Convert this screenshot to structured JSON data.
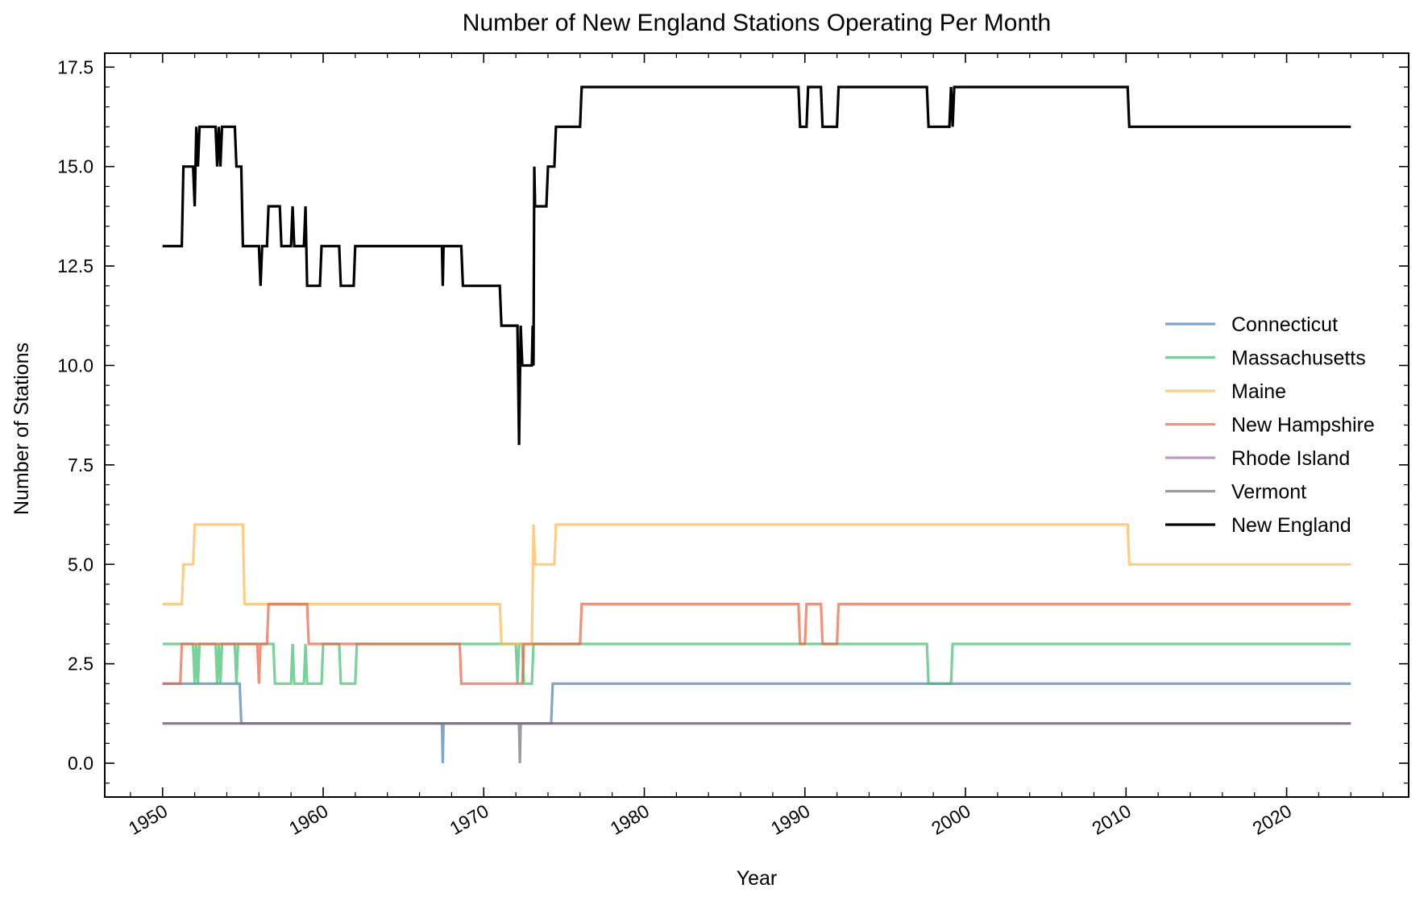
{
  "chart_data": {
    "type": "line",
    "title": "Number of New England Stations Operating Per Month",
    "xlabel": "Year",
    "ylabel": "Number of Stations",
    "xlim": [
      1946.4,
      2027.6
    ],
    "ylim": [
      -0.85,
      17.85
    ],
    "xticks": [
      "1950",
      "1960",
      "1970",
      "1980",
      "1990",
      "2000",
      "2010",
      "2020"
    ],
    "yticks": [
      "0.0",
      "2.5",
      "5.0",
      "7.5",
      "10.0",
      "12.5",
      "15.0",
      "17.5"
    ],
    "grid": false,
    "legend_position": "center-right",
    "series": [
      {
        "name": "Connecticut",
        "color": "#4a7fb5",
        "points": [
          [
            1950.0,
            2
          ],
          [
            1954.8,
            2
          ],
          [
            1954.9,
            1
          ],
          [
            1967.4,
            1
          ],
          [
            1967.45,
            0
          ],
          [
            1967.5,
            1
          ],
          [
            1974.2,
            1
          ],
          [
            1974.3,
            2
          ],
          [
            2024.0,
            2
          ]
        ]
      },
      {
        "name": "Massachusetts",
        "color": "#3cbf6e",
        "points": [
          [
            1950.0,
            3
          ],
          [
            1951.9,
            3
          ],
          [
            1952.0,
            2
          ],
          [
            1952.1,
            3
          ],
          [
            1952.2,
            2
          ],
          [
            1952.3,
            3
          ],
          [
            1953.3,
            3
          ],
          [
            1953.4,
            2
          ],
          [
            1953.5,
            3
          ],
          [
            1953.6,
            2
          ],
          [
            1953.7,
            3
          ],
          [
            1954.5,
            3
          ],
          [
            1954.6,
            2
          ],
          [
            1954.7,
            3
          ],
          [
            1956.9,
            3
          ],
          [
            1957.0,
            2
          ],
          [
            1958.0,
            2
          ],
          [
            1958.1,
            3
          ],
          [
            1958.2,
            2
          ],
          [
            1958.8,
            2
          ],
          [
            1958.9,
            3
          ],
          [
            1959.0,
            2
          ],
          [
            1959.9,
            2
          ],
          [
            1960.0,
            3
          ],
          [
            1961.0,
            3
          ],
          [
            1961.1,
            2
          ],
          [
            1962.0,
            2
          ],
          [
            1962.1,
            3
          ],
          [
            1972.0,
            3
          ],
          [
            1972.1,
            2
          ],
          [
            1972.2,
            3
          ],
          [
            1972.4,
            3
          ],
          [
            1972.5,
            2
          ],
          [
            1973.0,
            2
          ],
          [
            1973.1,
            3
          ],
          [
            1997.6,
            3
          ],
          [
            1997.7,
            2
          ],
          [
            1999.1,
            2
          ],
          [
            1999.2,
            3
          ],
          [
            2024.0,
            3
          ]
        ]
      },
      {
        "name": "Maine",
        "color": "#ffb84d",
        "points": [
          [
            1950.0,
            4
          ],
          [
            1951.2,
            4
          ],
          [
            1951.3,
            5
          ],
          [
            1951.9,
            5
          ],
          [
            1952.0,
            6
          ],
          [
            1955.0,
            6
          ],
          [
            1955.1,
            4
          ],
          [
            1971.0,
            4
          ],
          [
            1971.1,
            3
          ],
          [
            1973.0,
            3
          ],
          [
            1973.1,
            6
          ],
          [
            1973.2,
            5
          ],
          [
            1974.4,
            5
          ],
          [
            1974.5,
            6
          ],
          [
            2010.1,
            6
          ],
          [
            2010.2,
            5
          ],
          [
            2024.0,
            5
          ]
        ]
      },
      {
        "name": "New Hampshire",
        "color": "#f0603f",
        "points": [
          [
            1950.0,
            2
          ],
          [
            1951.1,
            2
          ],
          [
            1951.2,
            3
          ],
          [
            1955.9,
            3
          ],
          [
            1956.0,
            2
          ],
          [
            1956.1,
            3
          ],
          [
            1956.5,
            3
          ],
          [
            1956.6,
            4
          ],
          [
            1959.0,
            4
          ],
          [
            1959.1,
            3
          ],
          [
            1968.5,
            3
          ],
          [
            1968.6,
            2
          ],
          [
            1972.4,
            2
          ],
          [
            1972.5,
            3
          ],
          [
            1976.0,
            3
          ],
          [
            1976.1,
            4
          ],
          [
            1989.6,
            4
          ],
          [
            1989.7,
            3
          ],
          [
            1990.0,
            3
          ],
          [
            1990.1,
            4
          ],
          [
            1991.0,
            4
          ],
          [
            1991.1,
            3
          ],
          [
            1992.0,
            3
          ],
          [
            1992.1,
            4
          ],
          [
            2024.0,
            4
          ]
        ]
      },
      {
        "name": "Rhode Island",
        "color": "#a070b0",
        "points": [
          [
            1950.0,
            1
          ],
          [
            2024.0,
            1
          ]
        ]
      },
      {
        "name": "Vermont",
        "color": "#707070",
        "points": [
          [
            1950.0,
            1
          ],
          [
            1972.2,
            1
          ],
          [
            1972.25,
            0
          ],
          [
            1972.3,
            1
          ],
          [
            2024.0,
            1
          ]
        ]
      },
      {
        "name": "New England",
        "color": "#000000",
        "points": [
          [
            1950.0,
            13
          ],
          [
            1951.2,
            13
          ],
          [
            1951.3,
            15
          ],
          [
            1951.9,
            15
          ],
          [
            1952.0,
            14
          ],
          [
            1952.1,
            16
          ],
          [
            1952.2,
            15
          ],
          [
            1952.3,
            16
          ],
          [
            1953.3,
            16
          ],
          [
            1953.4,
            15
          ],
          [
            1953.5,
            16
          ],
          [
            1953.6,
            15
          ],
          [
            1953.7,
            16
          ],
          [
            1954.5,
            16
          ],
          [
            1954.6,
            15
          ],
          [
            1954.9,
            15
          ],
          [
            1955.0,
            13
          ],
          [
            1956.0,
            13
          ],
          [
            1956.1,
            12
          ],
          [
            1956.2,
            13
          ],
          [
            1956.5,
            13
          ],
          [
            1956.6,
            14
          ],
          [
            1957.3,
            14
          ],
          [
            1957.4,
            13
          ],
          [
            1958.0,
            13
          ],
          [
            1958.1,
            14
          ],
          [
            1958.2,
            13
          ],
          [
            1958.8,
            13
          ],
          [
            1958.9,
            14
          ],
          [
            1959.0,
            12
          ],
          [
            1959.8,
            12
          ],
          [
            1959.9,
            13
          ],
          [
            1961.0,
            13
          ],
          [
            1961.1,
            12
          ],
          [
            1961.9,
            12
          ],
          [
            1962.0,
            13
          ],
          [
            1967.4,
            13
          ],
          [
            1967.45,
            12
          ],
          [
            1967.5,
            13
          ],
          [
            1968.6,
            13
          ],
          [
            1968.7,
            12
          ],
          [
            1971.0,
            12
          ],
          [
            1971.1,
            11
          ],
          [
            1972.1,
            11
          ],
          [
            1972.2,
            8
          ],
          [
            1972.3,
            11
          ],
          [
            1972.4,
            10
          ],
          [
            1973.0,
            10
          ],
          [
            1973.05,
            11
          ],
          [
            1973.1,
            10
          ],
          [
            1973.15,
            15
          ],
          [
            1973.2,
            14
          ],
          [
            1973.9,
            14
          ],
          [
            1974.0,
            15
          ],
          [
            1974.4,
            15
          ],
          [
            1974.5,
            16
          ],
          [
            1976.0,
            16
          ],
          [
            1976.1,
            17
          ],
          [
            1989.6,
            17
          ],
          [
            1989.7,
            16
          ],
          [
            1990.1,
            16
          ],
          [
            1990.2,
            17
          ],
          [
            1991.0,
            17
          ],
          [
            1991.1,
            16
          ],
          [
            1992.0,
            16
          ],
          [
            1992.1,
            17
          ],
          [
            1997.6,
            17
          ],
          [
            1997.7,
            16
          ],
          [
            1999.0,
            16
          ],
          [
            1999.1,
            17
          ],
          [
            1999.2,
            16
          ],
          [
            1999.3,
            17
          ],
          [
            2010.1,
            17
          ],
          [
            2010.2,
            16
          ],
          [
            2024.0,
            16
          ]
        ]
      }
    ]
  }
}
